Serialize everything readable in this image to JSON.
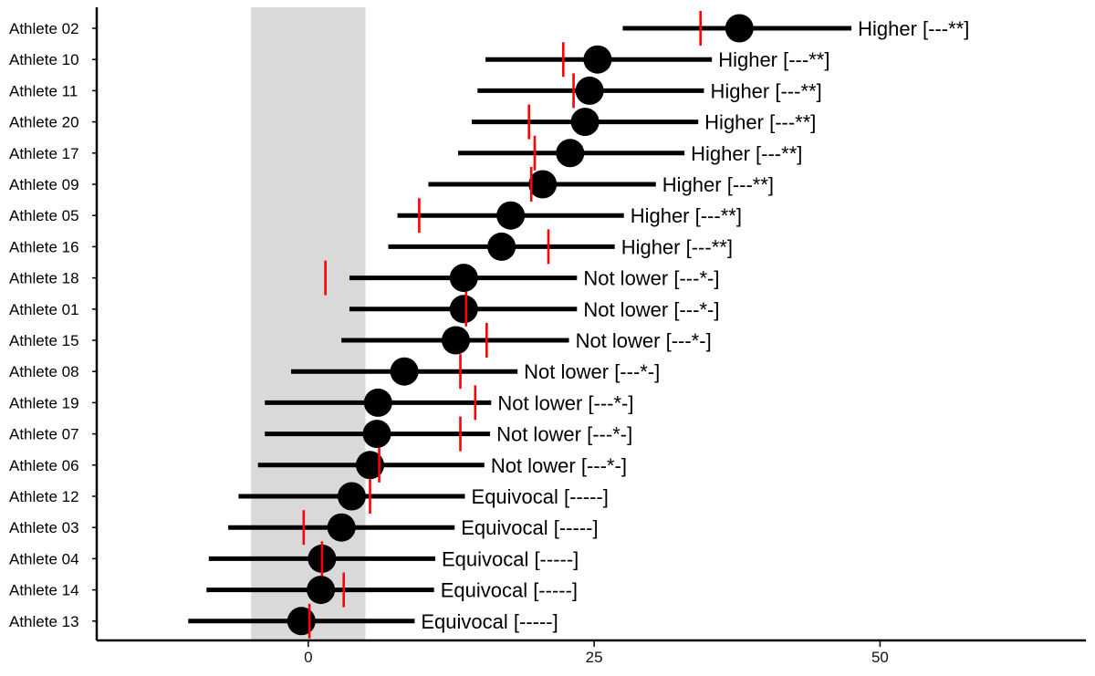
{
  "chart_data": {
    "type": "forest",
    "xlim": [
      -18.5,
      68
    ],
    "xticks": [
      0,
      25,
      50
    ],
    "xtick_labels": [
      "0",
      "25",
      "50"
    ],
    "band": [
      -5,
      5
    ],
    "colors": {
      "band": "#d9d9d9",
      "interval": "#000000",
      "point": "#000000",
      "reference": "#ff0000",
      "axis": "#000000"
    },
    "rows": [
      {
        "athlete": "Athlete 02",
        "estimate": 37.7,
        "low": 27.5,
        "high": 47.5,
        "reference": 34.3,
        "label": "Higher [---**]"
      },
      {
        "athlete": "Athlete 10",
        "estimate": 25.3,
        "low": 15.5,
        "high": 35.3,
        "reference": 22.3,
        "label": "Higher [---**]"
      },
      {
        "athlete": "Athlete 11",
        "estimate": 24.6,
        "low": 14.8,
        "high": 34.6,
        "reference": 23.2,
        "label": "Higher [---**]"
      },
      {
        "athlete": "Athlete 20",
        "estimate": 24.2,
        "low": 14.3,
        "high": 34.1,
        "reference": 19.3,
        "label": "Higher [---**]"
      },
      {
        "athlete": "Athlete 17",
        "estimate": 22.9,
        "low": 13.1,
        "high": 32.9,
        "reference": 19.8,
        "label": "Higher [---**]"
      },
      {
        "athlete": "Athlete 09",
        "estimate": 20.5,
        "low": 10.5,
        "high": 30.4,
        "reference": 19.5,
        "label": "Higher [---**]"
      },
      {
        "athlete": "Athlete 05",
        "estimate": 17.7,
        "low": 7.8,
        "high": 27.6,
        "reference": 9.7,
        "label": "Higher [---**]"
      },
      {
        "athlete": "Athlete 16",
        "estimate": 16.9,
        "low": 7.0,
        "high": 26.8,
        "reference": 21.0,
        "label": "Higher [---**]"
      },
      {
        "athlete": "Athlete 18",
        "estimate": 13.6,
        "low": 3.6,
        "high": 23.5,
        "reference": 1.5,
        "label": "Not lower [---*-]"
      },
      {
        "athlete": "Athlete 01",
        "estimate": 13.6,
        "low": 3.6,
        "high": 23.5,
        "reference": 13.8,
        "label": "Not lower [---*-]"
      },
      {
        "athlete": "Athlete 15",
        "estimate": 12.9,
        "low": 2.9,
        "high": 22.8,
        "reference": 15.6,
        "label": "Not lower [---*-]"
      },
      {
        "athlete": "Athlete 08",
        "estimate": 8.4,
        "low": -1.5,
        "high": 18.3,
        "reference": 13.3,
        "label": "Not lower [---*-]"
      },
      {
        "athlete": "Athlete 19",
        "estimate": 6.1,
        "low": -3.8,
        "high": 16.0,
        "reference": 14.6,
        "label": "Not lower [---*-]"
      },
      {
        "athlete": "Athlete 07",
        "estimate": 6.0,
        "low": -3.8,
        "high": 15.9,
        "reference": 13.3,
        "label": "Not lower [---*-]"
      },
      {
        "athlete": "Athlete 06",
        "estimate": 5.4,
        "low": -4.4,
        "high": 15.4,
        "reference": 6.2,
        "label": "Not lower [---*-]"
      },
      {
        "athlete": "Athlete 12",
        "estimate": 3.8,
        "low": -6.1,
        "high": 13.7,
        "reference": 5.4,
        "label": "Equivocal [-----]"
      },
      {
        "athlete": "Athlete 03",
        "estimate": 2.9,
        "low": -7.0,
        "high": 12.8,
        "reference": -0.4,
        "label": "Equivocal [-----]"
      },
      {
        "athlete": "Athlete 04",
        "estimate": 1.2,
        "low": -8.7,
        "high": 11.1,
        "reference": 1.2,
        "label": "Equivocal [-----]"
      },
      {
        "athlete": "Athlete 14",
        "estimate": 1.1,
        "low": -8.9,
        "high": 11.0,
        "reference": 3.1,
        "label": "Equivocal [-----]"
      },
      {
        "athlete": "Athlete 13",
        "estimate": -0.6,
        "low": -10.5,
        "high": 9.3,
        "reference": 0.1,
        "label": "Equivocal [-----]"
      }
    ]
  }
}
